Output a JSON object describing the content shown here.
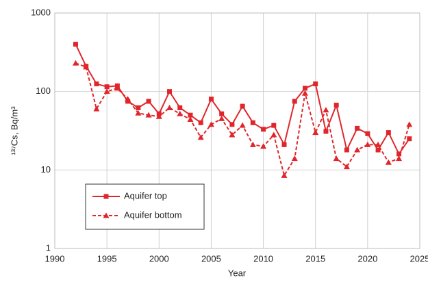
{
  "chart_data": {
    "type": "line",
    "x_label": "Year",
    "y_label": "¹³⁷Cs, Bq/m³",
    "x": [
      1992,
      1993,
      1994,
      1995,
      1996,
      1997,
      1998,
      1999,
      2000,
      2001,
      2002,
      2003,
      2004,
      2005,
      2006,
      2007,
      2008,
      2009,
      2010,
      2011,
      2012,
      2013,
      2014,
      2015,
      2016,
      2017,
      2018,
      2019,
      2020,
      2021,
      2022,
      2023,
      2024
    ],
    "series": [
      {
        "name": "Aquifer top",
        "color": "#e0262b",
        "marker": "square",
        "linestyle": "solid",
        "values": [
          400,
          210,
          125,
          115,
          118,
          75,
          62,
          75,
          52,
          100,
          62,
          50,
          40,
          80,
          52,
          38,
          65,
          40,
          33,
          37,
          21,
          75,
          110,
          125,
          31,
          67,
          18,
          34,
          29,
          18,
          30,
          16,
          25
        ]
      },
      {
        "name": "Aquifer bottom",
        "color": "#e0262b",
        "marker": "triangle",
        "linestyle": "dashed",
        "values": [
          230,
          205,
          60,
          100,
          110,
          80,
          53,
          50,
          48,
          62,
          52,
          44,
          26,
          38,
          45,
          28,
          37,
          21,
          20,
          28,
          8.5,
          14,
          95,
          30,
          58,
          14,
          11,
          18,
          21,
          21,
          12.5,
          14,
          38
        ]
      }
    ],
    "xlim": [
      1990,
      2025
    ],
    "xticks": [
      1990,
      1995,
      2000,
      2005,
      2010,
      2015,
      2020,
      2025
    ],
    "ylim": [
      1,
      1000
    ],
    "yticks": [
      1,
      10,
      100,
      1000
    ],
    "yscale": "log",
    "grid": true,
    "legend": "lower left"
  }
}
